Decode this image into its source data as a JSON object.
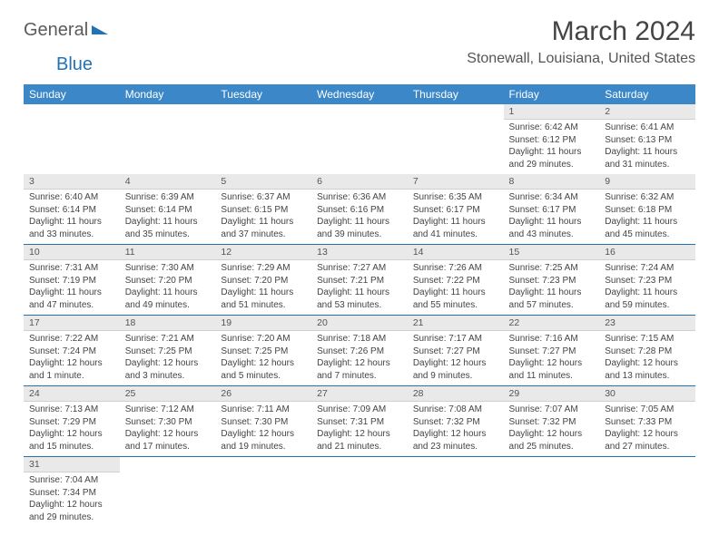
{
  "logo": {
    "text1": "General",
    "text2": "Blue"
  },
  "title": "March 2024",
  "location": "Stonewall, Louisiana, United States",
  "colors": {
    "header_bg": "#3b87c8",
    "header_text": "#ffffff",
    "daynum_bg": "#e9e9e9",
    "row_divider": "#2173b6",
    "body_text": "#444444",
    "logo_gray": "#5b5b5b",
    "logo_blue": "#2173b6"
  },
  "typography": {
    "title_fontsize": 30,
    "location_fontsize": 16,
    "header_fontsize": 12,
    "cell_fontsize": 10
  },
  "weekdays": [
    "Sunday",
    "Monday",
    "Tuesday",
    "Wednesday",
    "Thursday",
    "Friday",
    "Saturday"
  ],
  "weeks": [
    [
      null,
      null,
      null,
      null,
      null,
      {
        "n": "1",
        "sunrise": "Sunrise: 6:42 AM",
        "sunset": "Sunset: 6:12 PM",
        "daylight": "Daylight: 11 hours and 29 minutes."
      },
      {
        "n": "2",
        "sunrise": "Sunrise: 6:41 AM",
        "sunset": "Sunset: 6:13 PM",
        "daylight": "Daylight: 11 hours and 31 minutes."
      }
    ],
    [
      {
        "n": "3",
        "sunrise": "Sunrise: 6:40 AM",
        "sunset": "Sunset: 6:14 PM",
        "daylight": "Daylight: 11 hours and 33 minutes."
      },
      {
        "n": "4",
        "sunrise": "Sunrise: 6:39 AM",
        "sunset": "Sunset: 6:14 PM",
        "daylight": "Daylight: 11 hours and 35 minutes."
      },
      {
        "n": "5",
        "sunrise": "Sunrise: 6:37 AM",
        "sunset": "Sunset: 6:15 PM",
        "daylight": "Daylight: 11 hours and 37 minutes."
      },
      {
        "n": "6",
        "sunrise": "Sunrise: 6:36 AM",
        "sunset": "Sunset: 6:16 PM",
        "daylight": "Daylight: 11 hours and 39 minutes."
      },
      {
        "n": "7",
        "sunrise": "Sunrise: 6:35 AM",
        "sunset": "Sunset: 6:17 PM",
        "daylight": "Daylight: 11 hours and 41 minutes."
      },
      {
        "n": "8",
        "sunrise": "Sunrise: 6:34 AM",
        "sunset": "Sunset: 6:17 PM",
        "daylight": "Daylight: 11 hours and 43 minutes."
      },
      {
        "n": "9",
        "sunrise": "Sunrise: 6:32 AM",
        "sunset": "Sunset: 6:18 PM",
        "daylight": "Daylight: 11 hours and 45 minutes."
      }
    ],
    [
      {
        "n": "10",
        "sunrise": "Sunrise: 7:31 AM",
        "sunset": "Sunset: 7:19 PM",
        "daylight": "Daylight: 11 hours and 47 minutes."
      },
      {
        "n": "11",
        "sunrise": "Sunrise: 7:30 AM",
        "sunset": "Sunset: 7:20 PM",
        "daylight": "Daylight: 11 hours and 49 minutes."
      },
      {
        "n": "12",
        "sunrise": "Sunrise: 7:29 AM",
        "sunset": "Sunset: 7:20 PM",
        "daylight": "Daylight: 11 hours and 51 minutes."
      },
      {
        "n": "13",
        "sunrise": "Sunrise: 7:27 AM",
        "sunset": "Sunset: 7:21 PM",
        "daylight": "Daylight: 11 hours and 53 minutes."
      },
      {
        "n": "14",
        "sunrise": "Sunrise: 7:26 AM",
        "sunset": "Sunset: 7:22 PM",
        "daylight": "Daylight: 11 hours and 55 minutes."
      },
      {
        "n": "15",
        "sunrise": "Sunrise: 7:25 AM",
        "sunset": "Sunset: 7:23 PM",
        "daylight": "Daylight: 11 hours and 57 minutes."
      },
      {
        "n": "16",
        "sunrise": "Sunrise: 7:24 AM",
        "sunset": "Sunset: 7:23 PM",
        "daylight": "Daylight: 11 hours and 59 minutes."
      }
    ],
    [
      {
        "n": "17",
        "sunrise": "Sunrise: 7:22 AM",
        "sunset": "Sunset: 7:24 PM",
        "daylight": "Daylight: 12 hours and 1 minute."
      },
      {
        "n": "18",
        "sunrise": "Sunrise: 7:21 AM",
        "sunset": "Sunset: 7:25 PM",
        "daylight": "Daylight: 12 hours and 3 minutes."
      },
      {
        "n": "19",
        "sunrise": "Sunrise: 7:20 AM",
        "sunset": "Sunset: 7:25 PM",
        "daylight": "Daylight: 12 hours and 5 minutes."
      },
      {
        "n": "20",
        "sunrise": "Sunrise: 7:18 AM",
        "sunset": "Sunset: 7:26 PM",
        "daylight": "Daylight: 12 hours and 7 minutes."
      },
      {
        "n": "21",
        "sunrise": "Sunrise: 7:17 AM",
        "sunset": "Sunset: 7:27 PM",
        "daylight": "Daylight: 12 hours and 9 minutes."
      },
      {
        "n": "22",
        "sunrise": "Sunrise: 7:16 AM",
        "sunset": "Sunset: 7:27 PM",
        "daylight": "Daylight: 12 hours and 11 minutes."
      },
      {
        "n": "23",
        "sunrise": "Sunrise: 7:15 AM",
        "sunset": "Sunset: 7:28 PM",
        "daylight": "Daylight: 12 hours and 13 minutes."
      }
    ],
    [
      {
        "n": "24",
        "sunrise": "Sunrise: 7:13 AM",
        "sunset": "Sunset: 7:29 PM",
        "daylight": "Daylight: 12 hours and 15 minutes."
      },
      {
        "n": "25",
        "sunrise": "Sunrise: 7:12 AM",
        "sunset": "Sunset: 7:30 PM",
        "daylight": "Daylight: 12 hours and 17 minutes."
      },
      {
        "n": "26",
        "sunrise": "Sunrise: 7:11 AM",
        "sunset": "Sunset: 7:30 PM",
        "daylight": "Daylight: 12 hours and 19 minutes."
      },
      {
        "n": "27",
        "sunrise": "Sunrise: 7:09 AM",
        "sunset": "Sunset: 7:31 PM",
        "daylight": "Daylight: 12 hours and 21 minutes."
      },
      {
        "n": "28",
        "sunrise": "Sunrise: 7:08 AM",
        "sunset": "Sunset: 7:32 PM",
        "daylight": "Daylight: 12 hours and 23 minutes."
      },
      {
        "n": "29",
        "sunrise": "Sunrise: 7:07 AM",
        "sunset": "Sunset: 7:32 PM",
        "daylight": "Daylight: 12 hours and 25 minutes."
      },
      {
        "n": "30",
        "sunrise": "Sunrise: 7:05 AM",
        "sunset": "Sunset: 7:33 PM",
        "daylight": "Daylight: 12 hours and 27 minutes."
      }
    ],
    [
      {
        "n": "31",
        "sunrise": "Sunrise: 7:04 AM",
        "sunset": "Sunset: 7:34 PM",
        "daylight": "Daylight: 12 hours and 29 minutes."
      },
      null,
      null,
      null,
      null,
      null,
      null
    ]
  ]
}
